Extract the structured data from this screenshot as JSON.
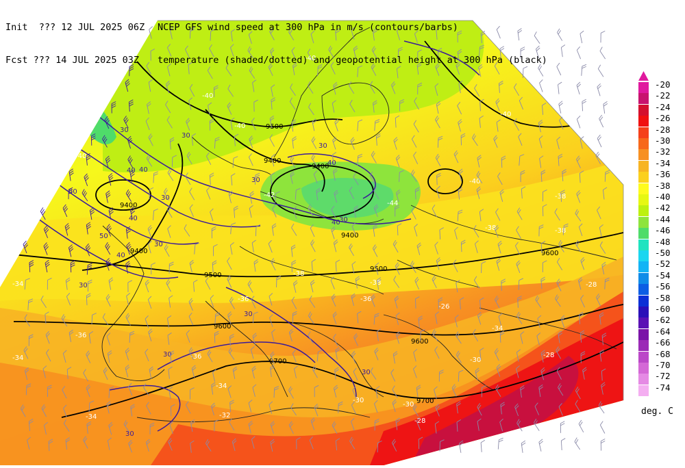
{
  "header": {
    "init_label": "Init  ??? 12 JUL 2025 06Z",
    "fcst_label": "Fcst ??? 14 JUL 2025 03Z",
    "title_line1": "NCEP GFS wind speed at 300 hPa in m/s (contours/barbs)",
    "title_line2": "temperature (shaded/dotted) and geopotential height at 300 hPa (black)"
  },
  "colorbar": {
    "labels": [
      "-20",
      "-22",
      "-24",
      "-26",
      "-28",
      "-30",
      "-32",
      "-34",
      "-36",
      "-38",
      "-40",
      "-42",
      "-44",
      "-46",
      "-48",
      "-50",
      "-52",
      "-54",
      "-56",
      "-58",
      "-60",
      "-62",
      "-64",
      "-66",
      "-68",
      "-70",
      "-72",
      "-74"
    ],
    "colors": [
      "#e0199e",
      "#c8136e",
      "#d4102e",
      "#f01010",
      "#f5401a",
      "#f7681a",
      "#f79022",
      "#f7b423",
      "#fbd01e",
      "#fefb1e",
      "#e6f812",
      "#bdf10f",
      "#8ee43c",
      "#4fdc6a",
      "#1fe3c0",
      "#1bd6f0",
      "#13b4f5",
      "#108ce8",
      "#0d5ee4",
      "#0c2fd6",
      "#2a0fb8",
      "#5a10b4",
      "#7a13a8",
      "#9b2ab6",
      "#bb48c8",
      "#d468d6",
      "#e58ae4",
      "#f4aef1"
    ],
    "units": "deg. C"
  },
  "map": {
    "height_contour_labels": [
      "9500",
      "9400",
      "9400",
      "9400",
      "9400",
      "9500",
      "9500",
      "9600",
      "9600",
      "9600",
      "9700",
      "9700",
      "9400"
    ],
    "wind_contour_labels": [
      "30",
      "30",
      "30",
      "40",
      "40",
      "40",
      "30",
      "30",
      "40",
      "40",
      "30",
      "50",
      "50",
      "40",
      "30",
      "30",
      "30",
      "30",
      "30",
      "30"
    ],
    "temperature_labels": [
      "-40",
      "-40",
      "-40",
      "-40",
      "-40",
      "-40",
      "-38",
      "-38",
      "-36",
      "-38",
      "-38",
      "-36",
      "-34",
      "-34",
      "-36",
      "-34",
      "-32",
      "-30",
      "-30",
      "-28",
      "-28",
      "-30",
      "-28",
      "-26",
      "-34",
      "-42",
      "-44",
      "-34",
      "-36",
      "-38"
    ]
  }
}
